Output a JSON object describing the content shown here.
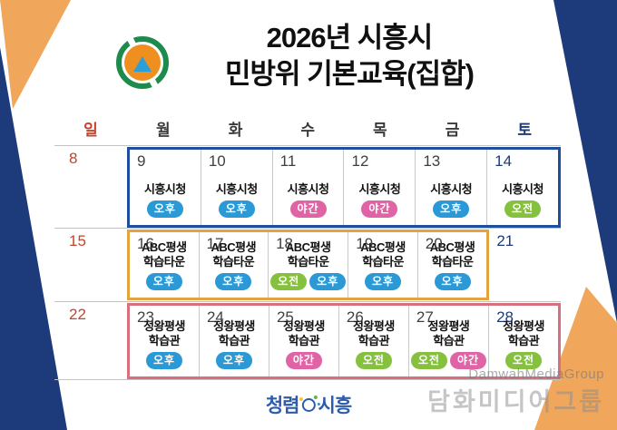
{
  "title": {
    "line1": "2026년 시흥시",
    "line2": "민방위 기본교육(집합)"
  },
  "logo": {
    "name": "civil-defense-emblem",
    "ring_color": "#1d8a4e",
    "inner_color": "#ef8f1f",
    "triangle_color": "#2b9fd8"
  },
  "calendar": {
    "weekdays": [
      {
        "label": "일",
        "color": "#c4432c"
      },
      {
        "label": "월",
        "color": "#3a3a3a"
      },
      {
        "label": "화",
        "color": "#3a3a3a"
      },
      {
        "label": "수",
        "color": "#3a3a3a"
      },
      {
        "label": "목",
        "color": "#3a3a3a"
      },
      {
        "label": "금",
        "color": "#3a3a3a"
      },
      {
        "label": "토",
        "color": "#1d3a7a"
      }
    ],
    "badge_colors": {
      "오전": "#85c03e",
      "오후": "#2a99d6",
      "야간": "#e063a5"
    },
    "day_number_colors": {
      "weekday": "#3f3f3f",
      "saturday": "#1d3a7a",
      "sunday": "#c4432c"
    },
    "weeks": [
      {
        "sunday": "8",
        "box_color": "#1f4e9c",
        "cells": [
          {
            "num": "9",
            "venue": [
              "시흥시청"
            ],
            "badges": [
              "오후"
            ]
          },
          {
            "num": "10",
            "venue": [
              "시흥시청"
            ],
            "badges": [
              "오후"
            ]
          },
          {
            "num": "11",
            "venue": [
              "시흥시청"
            ],
            "badges": [
              "야간"
            ]
          },
          {
            "num": "12",
            "venue": [
              "시흥시청"
            ],
            "badges": [
              "야간"
            ]
          },
          {
            "num": "13",
            "venue": [
              "시흥시청"
            ],
            "badges": [
              "오후"
            ]
          },
          {
            "num": "14",
            "venue": [
              "시흥시청"
            ],
            "badges": [
              "오전"
            ],
            "saturday": true
          }
        ]
      },
      {
        "sunday": "15",
        "saturday": "21",
        "box_color": "#e5a33f",
        "cells": [
          {
            "num": "16",
            "venue": [
              "ABC평생",
              "학습타운"
            ],
            "badges": [
              "오후"
            ]
          },
          {
            "num": "17",
            "venue": [
              "ABC평생",
              "학습타운"
            ],
            "badges": [
              "오후"
            ]
          },
          {
            "num": "18",
            "venue": [
              "ABC평생",
              "학습타운"
            ],
            "badges": [
              "오전",
              "오후"
            ]
          },
          {
            "num": "19",
            "venue": [
              "ABC평생",
              "학습타운"
            ],
            "badges": [
              "오후"
            ]
          },
          {
            "num": "20",
            "venue": [
              "ABC평생",
              "학습타운"
            ],
            "badges": [
              "오후"
            ]
          }
        ]
      },
      {
        "sunday": "22",
        "box_color": "#d6707f",
        "cells": [
          {
            "num": "23",
            "venue": [
              "정왕평생",
              "학습관"
            ],
            "badges": [
              "오후"
            ]
          },
          {
            "num": "24",
            "venue": [
              "정왕평생",
              "학습관"
            ],
            "badges": [
              "오후"
            ]
          },
          {
            "num": "25",
            "venue": [
              "정왕평생",
              "학습관"
            ],
            "badges": [
              "야간"
            ]
          },
          {
            "num": "26",
            "venue": [
              "정왕평생",
              "학습관"
            ],
            "badges": [
              "오전"
            ]
          },
          {
            "num": "27",
            "venue": [
              "정왕평생",
              "학습관"
            ],
            "badges": [
              "오전",
              "야간"
            ]
          },
          {
            "num": "28",
            "venue": [
              "정왕평생",
              "학습관"
            ],
            "badges": [
              "오전"
            ],
            "saturday": true
          }
        ]
      }
    ]
  },
  "footer": {
    "logo_left": "청렴",
    "logo_right": "시흥"
  },
  "watermark": {
    "line1": "DamwahMediaGroup",
    "line2": "담화미디어그룹"
  },
  "colors": {
    "corner_navy": "#1d3a7a",
    "corner_orange": "#f0a75c"
  }
}
